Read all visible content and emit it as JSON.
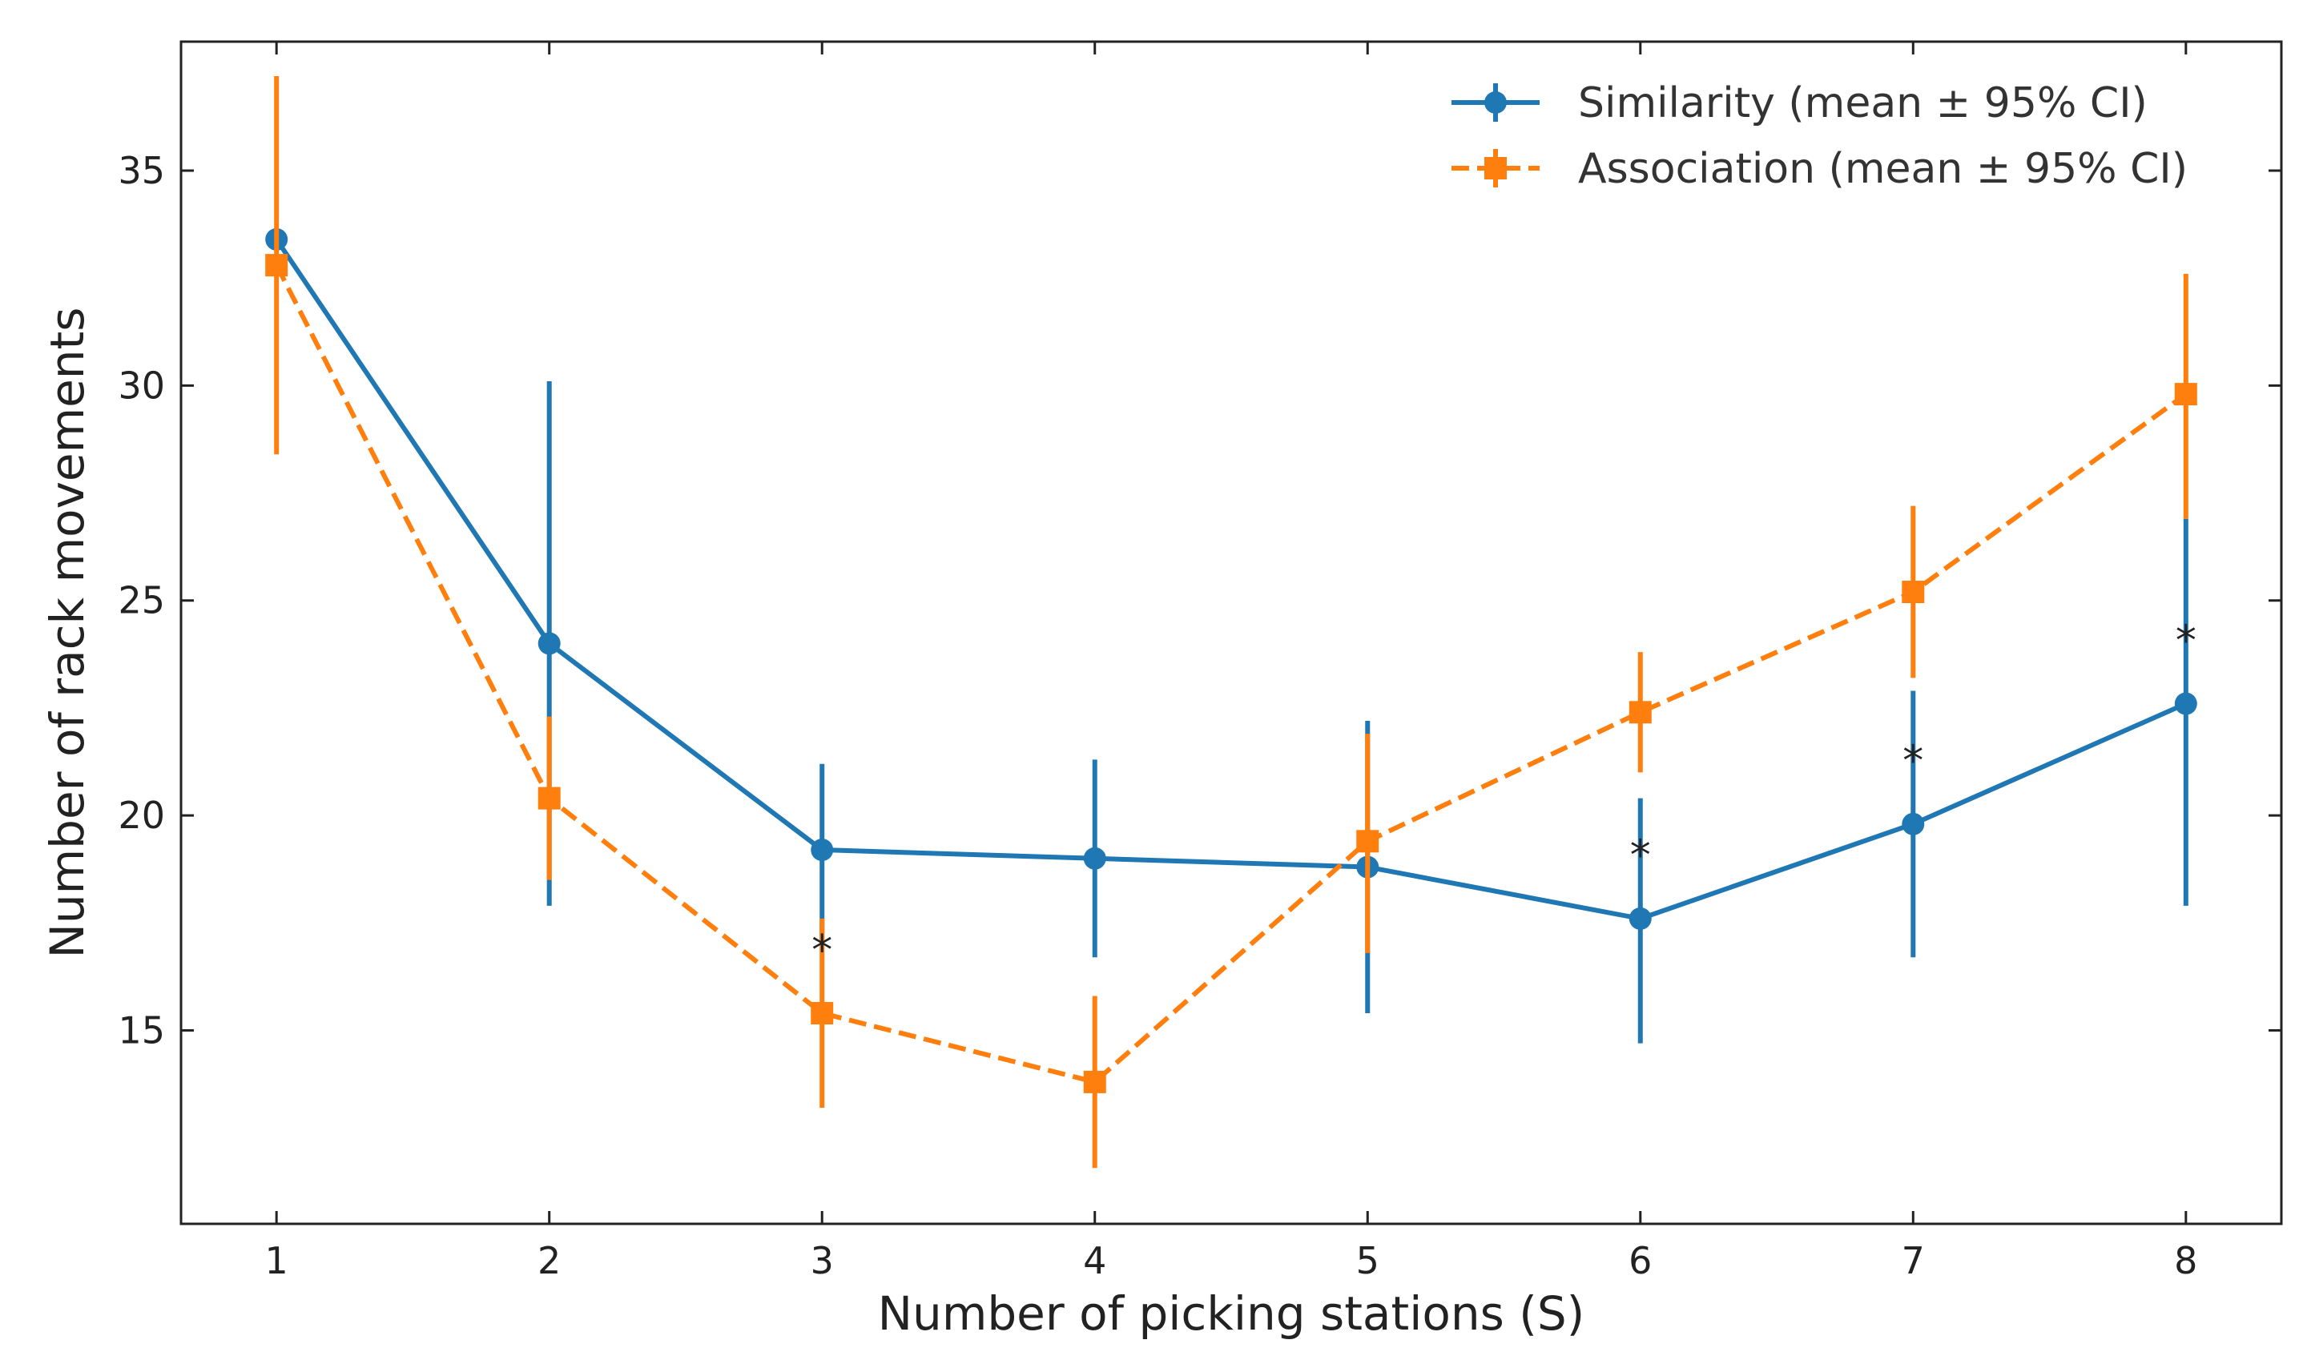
{
  "chart_data": {
    "type": "line",
    "title": "",
    "xlabel": "Number of picking stations (S)",
    "ylabel": "Number of rack movements",
    "x": [
      1,
      2,
      3,
      4,
      5,
      6,
      7,
      8
    ],
    "xlim": [
      0.65,
      8.35
    ],
    "ylim": [
      10.5,
      38.0
    ],
    "xticks": [
      1,
      2,
      3,
      4,
      5,
      6,
      7,
      8
    ],
    "yticks": [
      15,
      20,
      25,
      30,
      35
    ],
    "grid": false,
    "legend_position": "top-right",
    "series": [
      {
        "name": "Similarity (mean ± 95% CI)",
        "color": "#1f77b4",
        "linestyle": "solid",
        "marker": "circle",
        "values": [
          33.4,
          24.0,
          19.2,
          19.0,
          18.8,
          17.6,
          19.8,
          22.6
        ],
        "ci_low": [
          33.4,
          17.9,
          17.1,
          16.7,
          15.4,
          14.7,
          16.7,
          17.9
        ],
        "ci_high": [
          33.4,
          30.1,
          21.2,
          21.3,
          22.2,
          20.4,
          22.9,
          26.9
        ]
      },
      {
        "name": "Association (mean ± 95% CI)",
        "color": "#ff7f0e",
        "linestyle": "dashed",
        "marker": "square",
        "values": [
          32.8,
          20.4,
          15.4,
          13.8,
          19.4,
          22.4,
          25.2,
          29.8
        ],
        "ci_low": [
          28.4,
          18.5,
          13.2,
          11.8,
          16.8,
          21.0,
          23.2,
          26.9
        ],
        "ci_high": [
          37.2,
          22.3,
          17.6,
          15.8,
          21.9,
          23.8,
          27.2,
          32.6
        ]
      }
    ],
    "annotations": [
      {
        "text": "*",
        "x": 3,
        "y": 17.1
      },
      {
        "text": "*",
        "x": 6,
        "y": 19.3
      },
      {
        "text": "*",
        "x": 7,
        "y": 21.5
      },
      {
        "text": "*",
        "x": 8,
        "y": 24.3
      }
    ]
  }
}
